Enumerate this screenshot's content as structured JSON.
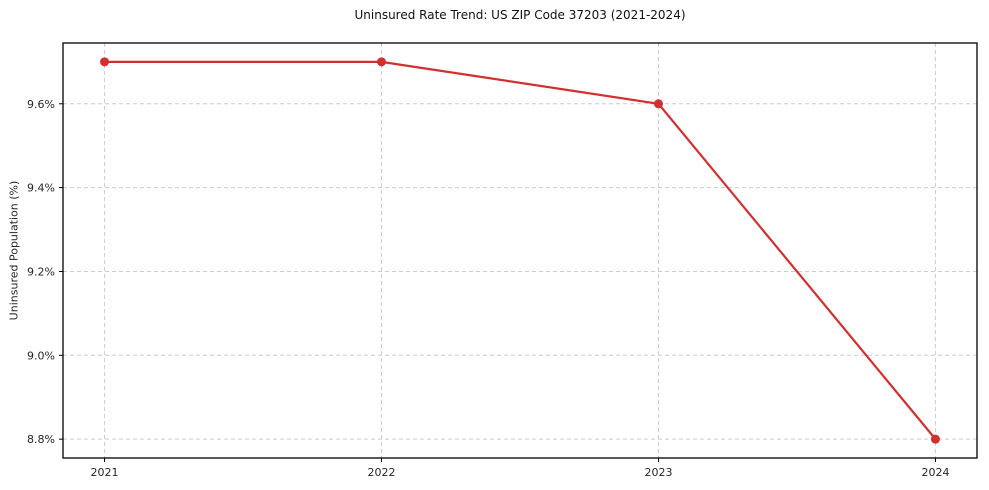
{
  "chart_data": {
    "type": "line",
    "title": "Uninsured Rate Trend: US ZIP Code 37203 (2021-2024)",
    "xlabel": "",
    "ylabel": "Uninsured Population (%)",
    "x": [
      2021,
      2022,
      2023,
      2024
    ],
    "x_tick_labels": [
      "2021",
      "2022",
      "2023",
      "2024"
    ],
    "series": [
      {
        "name": "Uninsured Population (%)",
        "values": [
          9.7,
          9.7,
          9.6,
          8.8
        ],
        "color": "#d32f2f"
      }
    ],
    "y_ticks": [
      8.8,
      9.0,
      9.2,
      9.4,
      9.6
    ],
    "y_tick_labels": [
      "8.8%",
      "9.0%",
      "9.2%",
      "9.4%",
      "9.6%"
    ],
    "xlim": [
      2020.85,
      2024.15
    ],
    "ylim": [
      8.755,
      9.745
    ],
    "grid": true,
    "grid_color": "#cccccc",
    "axes_color": "#000000",
    "background": "#ffffff",
    "legend_position": "none"
  }
}
